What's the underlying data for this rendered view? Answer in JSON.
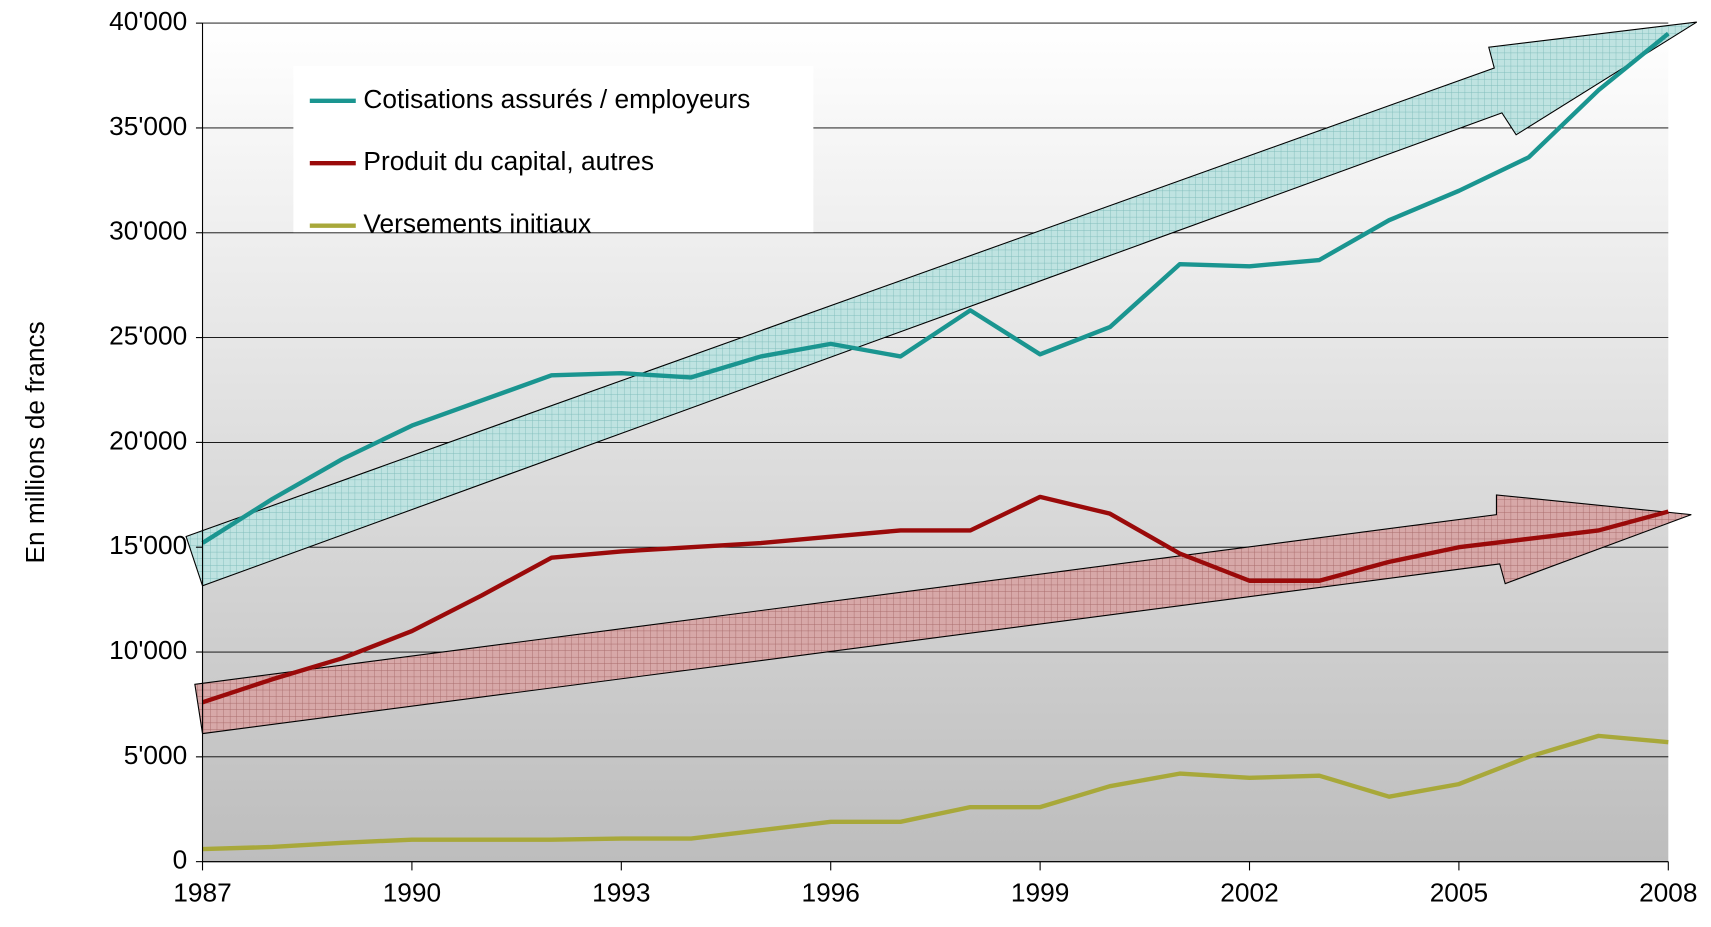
{
  "chart_data": {
    "type": "line",
    "y_label": "En millions de francs",
    "x": [
      1987,
      1988,
      1989,
      1990,
      1991,
      1992,
      1993,
      1994,
      1995,
      1996,
      1997,
      1998,
      1999,
      2000,
      2001,
      2002,
      2003,
      2004,
      2005,
      2006,
      2007,
      2008
    ],
    "series": [
      {
        "name": "Cotisations assurés / employeurs",
        "color": "#1a9590",
        "values": [
          15200,
          17300,
          19200,
          20800,
          22000,
          23200,
          23300,
          23100,
          24100,
          24700,
          24100,
          26300,
          24200,
          25500,
          28500,
          28400,
          28700,
          30600,
          32000,
          33600,
          36800,
          39500
        ]
      },
      {
        "name": "Produit du capital, autres",
        "color": "#9a0a0a",
        "values": [
          7600,
          8700,
          9700,
          11000,
          12700,
          14500,
          14800,
          15000,
          15200,
          15500,
          15800,
          15800,
          17400,
          16600,
          14700,
          13400,
          13400,
          14300,
          15000,
          15400,
          15800,
          16700
        ]
      },
      {
        "name": "Versements initiaux",
        "color": "#a8a83a",
        "values": [
          600,
          700,
          900,
          1050,
          1050,
          1050,
          1100,
          1100,
          1500,
          1900,
          1900,
          2600,
          2600,
          3600,
          4200,
          4000,
          4100,
          3100,
          3700,
          5000,
          6000,
          5700
        ]
      }
    ],
    "xlim": [
      1987,
      2008
    ],
    "xticks": [
      1987,
      1990,
      1993,
      1996,
      1999,
      2002,
      2005,
      2008
    ],
    "ylim": [
      0,
      40000
    ],
    "yticks": [
      0,
      {
        "value": 5000,
        "label": "5'000"
      },
      {
        "value": 10000,
        "label": "10'000"
      },
      {
        "value": 15000,
        "label": "15'000"
      },
      {
        "value": 20000,
        "label": "20'000"
      },
      {
        "value": 25000,
        "label": "25'000"
      },
      {
        "value": 30000,
        "label": "30'000"
      },
      {
        "value": 35000,
        "label": "35'000"
      },
      {
        "value": 40000,
        "label": "40'000"
      }
    ],
    "grid": true,
    "legend": "upper left"
  }
}
